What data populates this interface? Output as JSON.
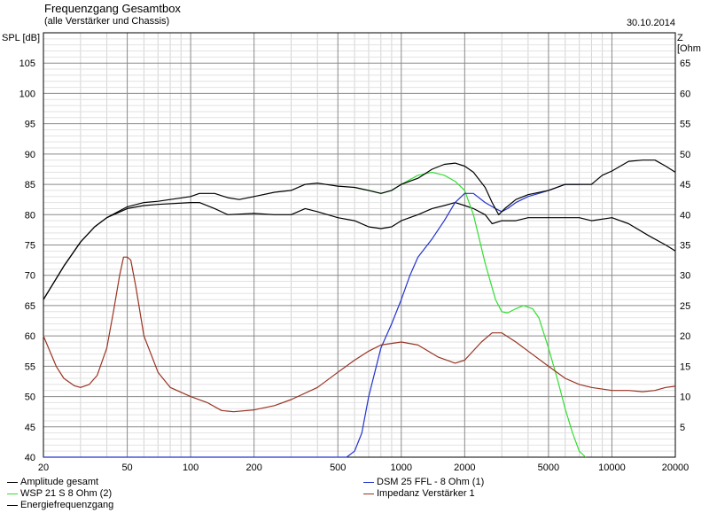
{
  "header": {
    "title": "Frequenzgang Gesamtbox",
    "subtitle": "(alle Verstärker und Chassis)",
    "date": "30.10.2014",
    "left_axis_label": "SPL [dB]",
    "right_axis_label": "Z [Ohm"
  },
  "chart_data": {
    "type": "line",
    "title": "Frequenzgang Gesamtbox",
    "subtitle": "(alle Verstärker und Chassis)",
    "x_scale": "log",
    "xlim": [
      20,
      20000
    ],
    "x_ticks": [
      20,
      50,
      100,
      200,
      500,
      1000,
      2000,
      5000,
      10000,
      20000
    ],
    "x_tick_labels": [
      "20",
      "50",
      "100",
      "200",
      "500",
      "1000",
      "2000",
      "5000",
      "10000",
      "20000"
    ],
    "ylabel": "SPL [dB]",
    "ylim": [
      40,
      110
    ],
    "y_ticks": [
      40,
      45,
      50,
      55,
      60,
      65,
      70,
      75,
      80,
      85,
      90,
      95,
      100,
      105
    ],
    "y2label": "Z [Ohm",
    "y2lim": [
      0,
      70
    ],
    "y2_ticks": [
      5,
      10,
      15,
      20,
      25,
      30,
      35,
      40,
      45,
      50,
      55,
      60,
      65
    ],
    "grid": true,
    "legend_position": "bottom",
    "series": [
      {
        "name": "Amplitude gesamt",
        "color": "#000000",
        "axis": "left",
        "points": [
          [
            20,
            66
          ],
          [
            25,
            71.5
          ],
          [
            30,
            75.5
          ],
          [
            35,
            78
          ],
          [
            40,
            79.5
          ],
          [
            50,
            81
          ],
          [
            60,
            81.5
          ],
          [
            70,
            81.7
          ],
          [
            100,
            82
          ],
          [
            110,
            82
          ],
          [
            130,
            81
          ],
          [
            150,
            80
          ],
          [
            200,
            80.2
          ],
          [
            250,
            80
          ],
          [
            300,
            80
          ],
          [
            350,
            81
          ],
          [
            400,
            80.5
          ],
          [
            500,
            79.5
          ],
          [
            600,
            79
          ],
          [
            700,
            78
          ],
          [
            800,
            77.7
          ],
          [
            900,
            78
          ],
          [
            1000,
            79
          ],
          [
            1200,
            80
          ],
          [
            1400,
            81
          ],
          [
            1600,
            81.5
          ],
          [
            1800,
            82
          ],
          [
            2000,
            81.5
          ],
          [
            2200,
            81
          ],
          [
            2500,
            80
          ],
          [
            2700,
            78.5
          ],
          [
            3000,
            79
          ],
          [
            3500,
            79
          ],
          [
            4000,
            79.5
          ],
          [
            5000,
            79.5
          ],
          [
            6000,
            79.5
          ],
          [
            7000,
            79.5
          ],
          [
            8000,
            79
          ],
          [
            10000,
            79.5
          ],
          [
            12000,
            78.5
          ],
          [
            15000,
            76.5
          ],
          [
            18000,
            75
          ],
          [
            20000,
            74
          ]
        ]
      },
      {
        "name": "WSP 21 S 8 Ohm (2)",
        "color": "#33dd33",
        "axis": "left",
        "points": [
          [
            600,
            84.5
          ],
          [
            700,
            84
          ],
          [
            800,
            83.5
          ],
          [
            900,
            84
          ],
          [
            1000,
            85
          ],
          [
            1200,
            86.5
          ],
          [
            1400,
            87
          ],
          [
            1600,
            86.5
          ],
          [
            1800,
            85.5
          ],
          [
            2000,
            84
          ],
          [
            2200,
            80
          ],
          [
            2500,
            72
          ],
          [
            2800,
            66
          ],
          [
            3000,
            64
          ],
          [
            3200,
            63.8
          ],
          [
            3500,
            64.5
          ],
          [
            3800,
            65
          ],
          [
            4200,
            64.5
          ],
          [
            4500,
            63
          ],
          [
            5000,
            58
          ],
          [
            5500,
            53
          ],
          [
            6000,
            48
          ],
          [
            6500,
            44
          ],
          [
            7000,
            41
          ],
          [
            7500,
            40
          ]
        ]
      },
      {
        "name": "DSM 25 FFL - 8 Ohm (1)",
        "color": "#2233cc",
        "axis": "left",
        "points": [
          [
            20,
            40
          ],
          [
            100,
            40
          ],
          [
            300,
            40
          ],
          [
            550,
            40
          ],
          [
            600,
            41
          ],
          [
            650,
            44
          ],
          [
            700,
            50
          ],
          [
            800,
            58
          ],
          [
            900,
            62
          ],
          [
            1000,
            66
          ],
          [
            1100,
            70
          ],
          [
            1200,
            73
          ],
          [
            1400,
            76
          ],
          [
            1600,
            79
          ],
          [
            1800,
            82
          ],
          [
            2000,
            83.5
          ],
          [
            2200,
            83.5
          ],
          [
            2500,
            82
          ],
          [
            2800,
            81
          ],
          [
            3000,
            80.5
          ],
          [
            3200,
            81
          ],
          [
            3500,
            82
          ],
          [
            4000,
            83
          ],
          [
            4500,
            83.5
          ],
          [
            5000,
            84
          ],
          [
            6000,
            85
          ],
          [
            7000,
            85
          ]
        ]
      },
      {
        "name": "Impedanz Verstärker 1",
        "color": "#993322",
        "axis": "right",
        "points": [
          [
            20,
            20
          ],
          [
            23,
            15
          ],
          [
            25,
            13
          ],
          [
            28,
            11.8
          ],
          [
            30,
            11.5
          ],
          [
            33,
            12
          ],
          [
            36,
            13.5
          ],
          [
            40,
            18
          ],
          [
            43,
            24
          ],
          [
            46,
            30
          ],
          [
            48,
            33
          ],
          [
            50,
            33
          ],
          [
            52,
            32.5
          ],
          [
            55,
            28
          ],
          [
            60,
            20
          ],
          [
            70,
            14
          ],
          [
            80,
            11.5
          ],
          [
            100,
            10
          ],
          [
            120,
            9
          ],
          [
            140,
            7.7
          ],
          [
            160,
            7.5
          ],
          [
            200,
            7.8
          ],
          [
            250,
            8.5
          ],
          [
            300,
            9.5
          ],
          [
            400,
            11.5
          ],
          [
            500,
            14
          ],
          [
            600,
            16
          ],
          [
            700,
            17.5
          ],
          [
            800,
            18.5
          ],
          [
            1000,
            19
          ],
          [
            1200,
            18.5
          ],
          [
            1500,
            16.5
          ],
          [
            1800,
            15.5
          ],
          [
            2000,
            16
          ],
          [
            2400,
            19
          ],
          [
            2700,
            20.5
          ],
          [
            3000,
            20.5
          ],
          [
            3500,
            19
          ],
          [
            4000,
            17.5
          ],
          [
            5000,
            15
          ],
          [
            6000,
            13
          ],
          [
            7000,
            12
          ],
          [
            8000,
            11.5
          ],
          [
            10000,
            11
          ],
          [
            12000,
            11
          ],
          [
            14000,
            10.8
          ],
          [
            16000,
            11
          ],
          [
            18000,
            11.5
          ],
          [
            20000,
            11.7
          ]
        ]
      },
      {
        "name": "Energiefrequenzgang",
        "color": "#000000",
        "axis": "left",
        "points": [
          [
            20,
            66
          ],
          [
            25,
            71.5
          ],
          [
            30,
            75.5
          ],
          [
            35,
            78
          ],
          [
            40,
            79.5
          ],
          [
            50,
            81.3
          ],
          [
            60,
            82
          ],
          [
            70,
            82.2
          ],
          [
            80,
            82.5
          ],
          [
            100,
            83
          ],
          [
            110,
            83.5
          ],
          [
            130,
            83.5
          ],
          [
            150,
            82.8
          ],
          [
            170,
            82.5
          ],
          [
            200,
            83
          ],
          [
            250,
            83.7
          ],
          [
            300,
            84
          ],
          [
            350,
            85
          ],
          [
            400,
            85.2
          ],
          [
            500,
            84.7
          ],
          [
            600,
            84.5
          ],
          [
            700,
            84
          ],
          [
            800,
            83.5
          ],
          [
            900,
            84
          ],
          [
            1000,
            85
          ],
          [
            1200,
            86
          ],
          [
            1400,
            87.5
          ],
          [
            1600,
            88.3
          ],
          [
            1800,
            88.5
          ],
          [
            2000,
            88
          ],
          [
            2200,
            87
          ],
          [
            2500,
            84.5
          ],
          [
            2700,
            82
          ],
          [
            2900,
            80
          ],
          [
            3100,
            81
          ],
          [
            3500,
            82.5
          ],
          [
            4000,
            83.3
          ],
          [
            5000,
            84
          ],
          [
            6000,
            85
          ],
          [
            7000,
            85
          ],
          [
            8000,
            85
          ],
          [
            9000,
            86.5
          ],
          [
            10000,
            87.2
          ],
          [
            12000,
            88.8
          ],
          [
            14000,
            89
          ],
          [
            16000,
            89
          ],
          [
            18000,
            88
          ],
          [
            20000,
            87
          ]
        ]
      }
    ]
  },
  "legend": [
    {
      "label": "Amplitude gesamt",
      "color": "#000000"
    },
    {
      "label": "DSM 25 FFL - 8 Ohm (1)",
      "color": "#2233cc"
    },
    {
      "label": "WSP 21 S 8 Ohm (2)",
      "color": "#33dd33"
    },
    {
      "label": "Impedanz Verstärker 1",
      "color": "#993322"
    },
    {
      "label": "Energiefrequenzgang",
      "color": "#000000"
    }
  ]
}
